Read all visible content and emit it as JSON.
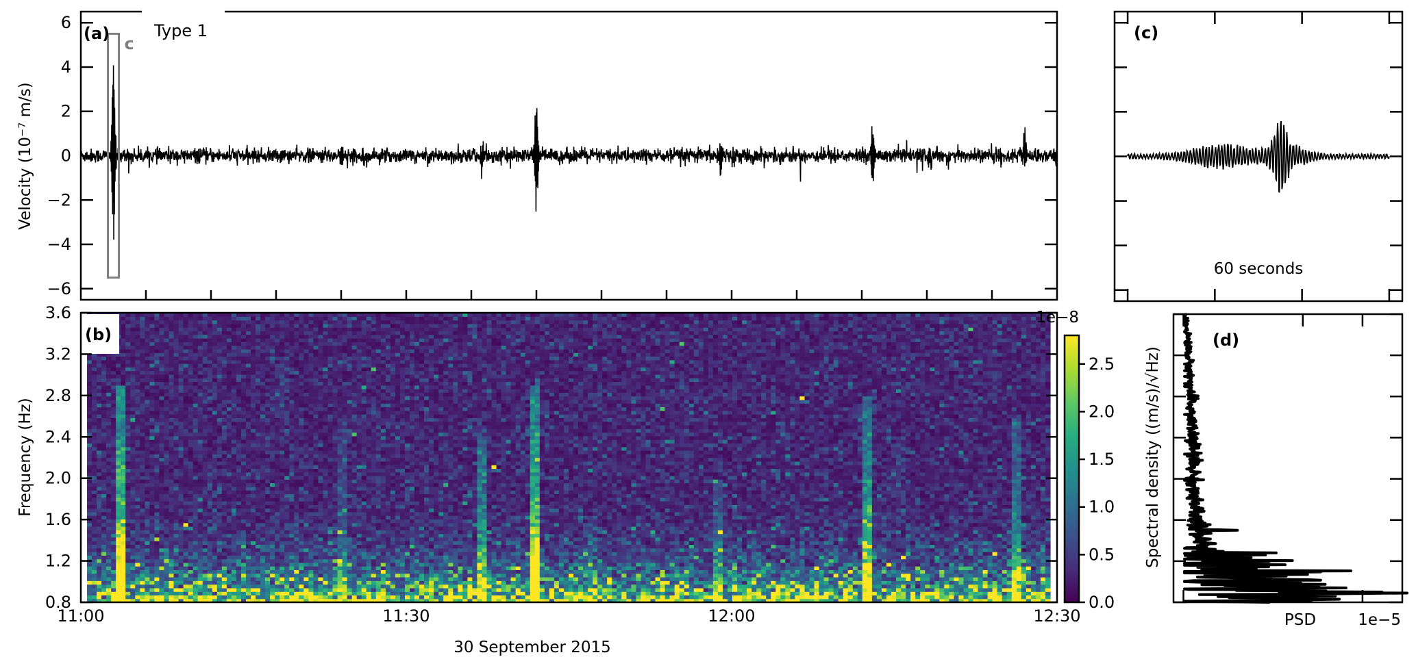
{
  "chart_data": [
    {
      "panel_label": "(a)",
      "type": "line",
      "legend_text": "Type 1",
      "ylabel": "Velocity (10⁻⁷ m/s)",
      "ylim": [
        -6.5,
        6.5
      ],
      "yticks": [
        6,
        4,
        2,
        0,
        -2,
        -4,
        -6
      ],
      "ytick_labels": [
        "6",
        "4",
        "2",
        "0",
        "−2",
        "−4",
        "−6"
      ],
      "xlim_minutes_after_11_00": [
        0,
        90
      ],
      "x_minor_tick_step_minutes": 6,
      "line_color": "#000000",
      "noise_amplitude": 0.35,
      "events": [
        {
          "time": "11:03",
          "peak": 4.0,
          "trough": -3.9
        },
        {
          "time": "11:24",
          "peak": 0.5,
          "trough": -0.5
        },
        {
          "time": "11:37",
          "peak": 0.6,
          "trough": -0.7
        },
        {
          "time": "11:42",
          "peak": 2.8,
          "trough": -2.6
        },
        {
          "time": "11:59",
          "peak": 0.9,
          "trough": -0.8
        },
        {
          "time": "12:13",
          "peak": 1.7,
          "trough": -1.4
        },
        {
          "time": "12:27",
          "peak": 1.0,
          "trough": -0.5
        }
      ],
      "highlight_box": {
        "label": "c",
        "time": "11:03",
        "ylim": [
          -5.5,
          5.5
        ],
        "color": "#808080"
      }
    },
    {
      "panel_label": "(b)",
      "type": "heatmap",
      "ylabel": "Frequency (Hz)",
      "xlabel": "30 September 2015",
      "ylim": [
        0.8,
        3.6
      ],
      "yticks": [
        3.6,
        3.2,
        2.8,
        2.4,
        2.0,
        1.6,
        1.2,
        0.8
      ],
      "ytick_labels": [
        "3.6",
        "3.2",
        "2.8",
        "2.4",
        "2.0",
        "1.6",
        "1.2",
        "0.8"
      ],
      "xticks": [
        "11:00",
        "11:30",
        "12:00",
        "12:30"
      ],
      "colormap": "viridis",
      "colorbar": {
        "range": [
          0.0,
          2.8
        ],
        "ticks": [
          0.0,
          0.5,
          1.0,
          1.5,
          2.0,
          2.5
        ],
        "tick_labels": [
          "0.0",
          "0.5",
          "1.0",
          "1.5",
          "2.0",
          "2.5"
        ],
        "offset_text": "1e−8"
      },
      "strong_low_frequency_band_hz": [
        0.8,
        1.2
      ],
      "event_stripes": [
        {
          "time": "11:03",
          "strength": 2.6,
          "top_hz": 2.9
        },
        {
          "time": "11:24",
          "strength": 0.6,
          "top_hz": 2.6
        },
        {
          "time": "11:37",
          "strength": 1.2,
          "top_hz": 2.4
        },
        {
          "time": "11:42",
          "strength": 2.6,
          "top_hz": 2.9
        },
        {
          "time": "11:59",
          "strength": 0.6,
          "top_hz": 2.0
        },
        {
          "time": "12:13",
          "strength": 1.8,
          "top_hz": 2.8
        },
        {
          "time": "12:27",
          "strength": 1.2,
          "top_hz": 2.6
        }
      ]
    },
    {
      "panel_label": "(c)",
      "type": "line",
      "annotation": "60 seconds",
      "ylim": [
        -6.5,
        6.5
      ],
      "xlim_seconds": [
        -3,
        63
      ],
      "peak": 2.3,
      "trough": -2.3,
      "peak_time_seconds": 35,
      "line_color": "#000000"
    },
    {
      "panel_label": "(d)",
      "type": "line",
      "ylabel": "Spectral density ((m/s)/√Hz)",
      "xlabel": "PSD",
      "x_offset_text": "1e−5",
      "ylim": [
        0.8,
        3.6
      ],
      "xlim": [
        -0.05,
        1.1
      ],
      "frequency_hz": [
        0.8,
        0.9,
        1.0,
        1.1,
        1.2,
        1.3,
        1.4,
        1.5,
        1.6,
        1.7,
        1.8,
        2.0,
        2.2,
        2.4,
        2.6,
        2.8,
        3.0,
        3.2,
        3.4,
        3.6
      ],
      "psd": [
        0.45,
        0.55,
        0.35,
        0.3,
        0.2,
        0.15,
        0.09,
        0.1,
        0.06,
        0.06,
        0.05,
        0.05,
        0.05,
        0.045,
        0.04,
        0.035,
        0.03,
        0.025,
        0.02,
        0.01
      ],
      "line_color": "#000000"
    }
  ]
}
